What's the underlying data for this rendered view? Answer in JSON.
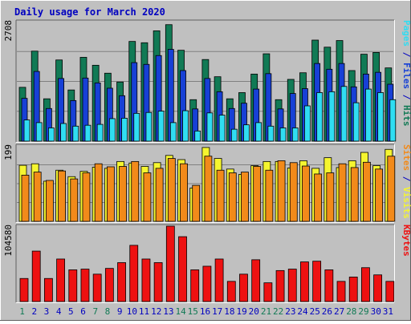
{
  "title": "Daily usage for March 2020",
  "colors": {
    "background": "#c0c0c0",
    "plot_background": "#c0c0c0",
    "title": "#0000c0",
    "hits": "#117a55",
    "files": "#1740d6",
    "pages": "#30ddf2",
    "visits": "#f5f530",
    "sites": "#f28a1a",
    "kbytes": "#ee1111",
    "grid": "#808080",
    "weekend_label": "#117a55",
    "weekday_label": "#0000c0"
  },
  "chart_data": {
    "type": "bar",
    "title": "Daily usage for March 2020",
    "categories": [
      "1",
      "2",
      "3",
      "4",
      "5",
      "6",
      "7",
      "8",
      "9",
      "10",
      "11",
      "12",
      "13",
      "14",
      "15",
      "16",
      "17",
      "18",
      "19",
      "20",
      "21",
      "22",
      "23",
      "24",
      "25",
      "26",
      "27",
      "28",
      "29",
      "30",
      "31"
    ],
    "weekend_days": [
      "1",
      "7",
      "8",
      "14",
      "15",
      "21",
      "22",
      "28",
      "29"
    ],
    "panels": [
      {
        "name": "pages-files-hits",
        "max_label": "2708",
        "ymax": 2708,
        "grid": true,
        "legend": [
          {
            "text": "Pages",
            "color_key": "pages"
          },
          {
            "text": " / ",
            "color_key": "title"
          },
          {
            "text": "Files",
            "color_key": "files"
          },
          {
            "text": " / ",
            "color_key": "title"
          },
          {
            "text": "Hits",
            "color_key": "hits"
          }
        ],
        "series": [
          {
            "name": "Hits",
            "color_key": "hits",
            "values": [
              1220,
              2040,
              960,
              1840,
              1160,
              1900,
              1720,
              1540,
              1340,
              2260,
              2230,
              2500,
              2640,
              2060,
              940,
              1850,
              1460,
              960,
              1100,
              1520,
              1980,
              940,
              1400,
              1550,
              2290,
              2130,
              2280,
              1600,
              1970,
              2010,
              1660
            ]
          },
          {
            "name": "Files",
            "color_key": "files",
            "values": [
              970,
              1580,
              740,
              1420,
              920,
              1430,
              1320,
              1200,
              1030,
              1780,
              1740,
              1940,
              2080,
              1600,
              730,
              1420,
              1120,
              740,
              860,
              1180,
              1530,
              730,
              1080,
              1190,
              1760,
              1630,
              1760,
              1230,
              1520,
              1560,
              1290
            ]
          },
          {
            "name": "Pages",
            "color_key": "pages",
            "values": [
              480,
              420,
              300,
              400,
              340,
              360,
              380,
              510,
              520,
              630,
              650,
              680,
              420,
              690,
              230,
              640,
              590,
              270,
              370,
              420,
              340,
              300,
              300,
              800,
              1100,
              1120,
              1240,
              870,
              1180,
              1100,
              940
            ]
          }
        ]
      },
      {
        "name": "sites-visits",
        "max_label": "199",
        "ymax": 199,
        "grid": true,
        "legend": [
          {
            "text": "Sites",
            "color_key": "sites"
          },
          {
            "text": " / ",
            "color_key": "title"
          },
          {
            "text": "Visits",
            "color_key": "visits"
          }
        ],
        "series": [
          {
            "name": "Visits",
            "color_key": "visits",
            "values": [
              148,
              152,
              106,
              135,
              118,
              132,
              143,
              140,
              158,
              154,
              145,
              155,
              174,
              163,
              88,
              195,
              166,
              138,
              124,
              147,
              158,
              158,
              141,
              160,
              140,
              168,
              142,
              160,
              182,
              147,
              190
            ]
          },
          {
            "name": "Sites",
            "color_key": "sites",
            "values": [
              122,
              130,
              108,
              133,
              112,
              128,
              152,
              144,
              145,
              158,
              128,
              140,
              166,
              152,
              95,
              172,
              135,
              128,
              130,
              145,
              135,
              160,
              155,
              146,
              125,
              128,
              152,
              142,
              156,
              138,
              172
            ]
          }
        ]
      },
      {
        "name": "kbytes",
        "max_label": "104580",
        "ymax": 104580,
        "grid": false,
        "legend": [
          {
            "text": "KBytes",
            "color_key": "kbytes"
          }
        ],
        "series": [
          {
            "name": "KBytes",
            "color_key": "kbytes",
            "values": [
              32000,
              70000,
              32000,
              59000,
              44000,
              45000,
              38000,
              46000,
              54000,
              78000,
              59000,
              54000,
              104580,
              90000,
              44000,
              49000,
              59000,
              28000,
              38000,
              58000,
              26000,
              43000,
              45000,
              55000,
              56000,
              44000,
              28000,
              34000,
              47000,
              37000,
              28000
            ]
          }
        ]
      }
    ]
  }
}
